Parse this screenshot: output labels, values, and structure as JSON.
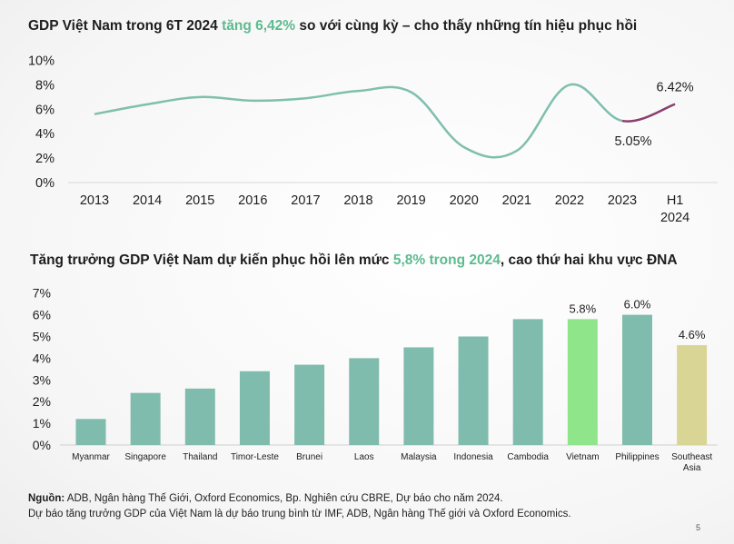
{
  "title1": {
    "pre": "GDP Việt Nam trong 6T 2024 ",
    "highlight": "tăng 6,42%",
    "post": " so với cùng kỳ – cho thấy những tín hiệu phục hồi"
  },
  "title2": {
    "pre": "Tăng trưởng GDP Việt Nam dự kiến phục hồi lên mức ",
    "highlight": "5,8% trong 2024",
    "post": ", cao thứ hai khu vực ĐNA"
  },
  "source": {
    "label": "Nguồn:",
    "text": " ADB, Ngân hàng Thế Giới, Oxford Economics, Bp. Nghiên cứu CBRE, Dự báo cho năm 2024.",
    "note": "Dự báo tăng trưởng GDP của Việt Nam là dự báo trung bình từ IMF, ADB, Ngân hàng Thế giới và Oxford Economics."
  },
  "page_number": "5",
  "colors": {
    "line": "#7fbfad",
    "highlight_line": "#8a3f6c",
    "bar": "#80bcad",
    "bar_vietnam": "#8ee58a",
    "bar_sea": "#d9d595",
    "title_hl": "#5dbb8e",
    "text": "#1e1e1e"
  },
  "chart_data": [
    {
      "type": "line",
      "title": "GDP Việt Nam trong 6T 2024 tăng 6,42% so với cùng kỳ – cho thấy những tín hiệu phục hồi",
      "categories": [
        "2013",
        "2014",
        "2015",
        "2016",
        "2017",
        "2018",
        "2019",
        "2020",
        "2021",
        "2022",
        "2023",
        "H1 2024"
      ],
      "values": [
        5.6,
        6.4,
        7.0,
        6.7,
        6.9,
        7.5,
        7.4,
        2.9,
        2.6,
        8.0,
        5.05,
        6.42
      ],
      "highlight_segment": [
        "2023",
        "H1 2024"
      ],
      "data_labels": [
        {
          "category": "2023",
          "text": "5.05%"
        },
        {
          "category": "H1 2024",
          "text": "6.42%"
        }
      ],
      "y_ticks": [
        "0%",
        "2%",
        "4%",
        "6%",
        "8%",
        "10%"
      ],
      "ylim": [
        0,
        10
      ]
    },
    {
      "type": "bar",
      "title": "Tăng trưởng GDP Việt Nam dự kiến phục hồi lên mức 5,8% trong 2024, cao thứ hai khu vực ĐNA",
      "categories": [
        "Myanmar",
        "Singapore",
        "Thailand",
        "Timor-Leste",
        "Brunei",
        "Laos",
        "Malaysia",
        "Indonesia",
        "Cambodia",
        "Vietnam",
        "Philippines",
        "Southeast Asia"
      ],
      "values": [
        1.2,
        2.4,
        2.6,
        3.4,
        3.7,
        4.0,
        4.5,
        5.0,
        5.8,
        5.8,
        6.0,
        4.6
      ],
      "data_labels": [
        {
          "category": "Vietnam",
          "text": "5.8%"
        },
        {
          "category": "Philippines",
          "text": "6.0%"
        },
        {
          "category": "Southeast Asia",
          "text": "4.6%"
        }
      ],
      "y_ticks": [
        "0%",
        "1%",
        "2%",
        "3%",
        "4%",
        "5%",
        "6%",
        "7%"
      ],
      "ylim": [
        0,
        7
      ]
    }
  ]
}
